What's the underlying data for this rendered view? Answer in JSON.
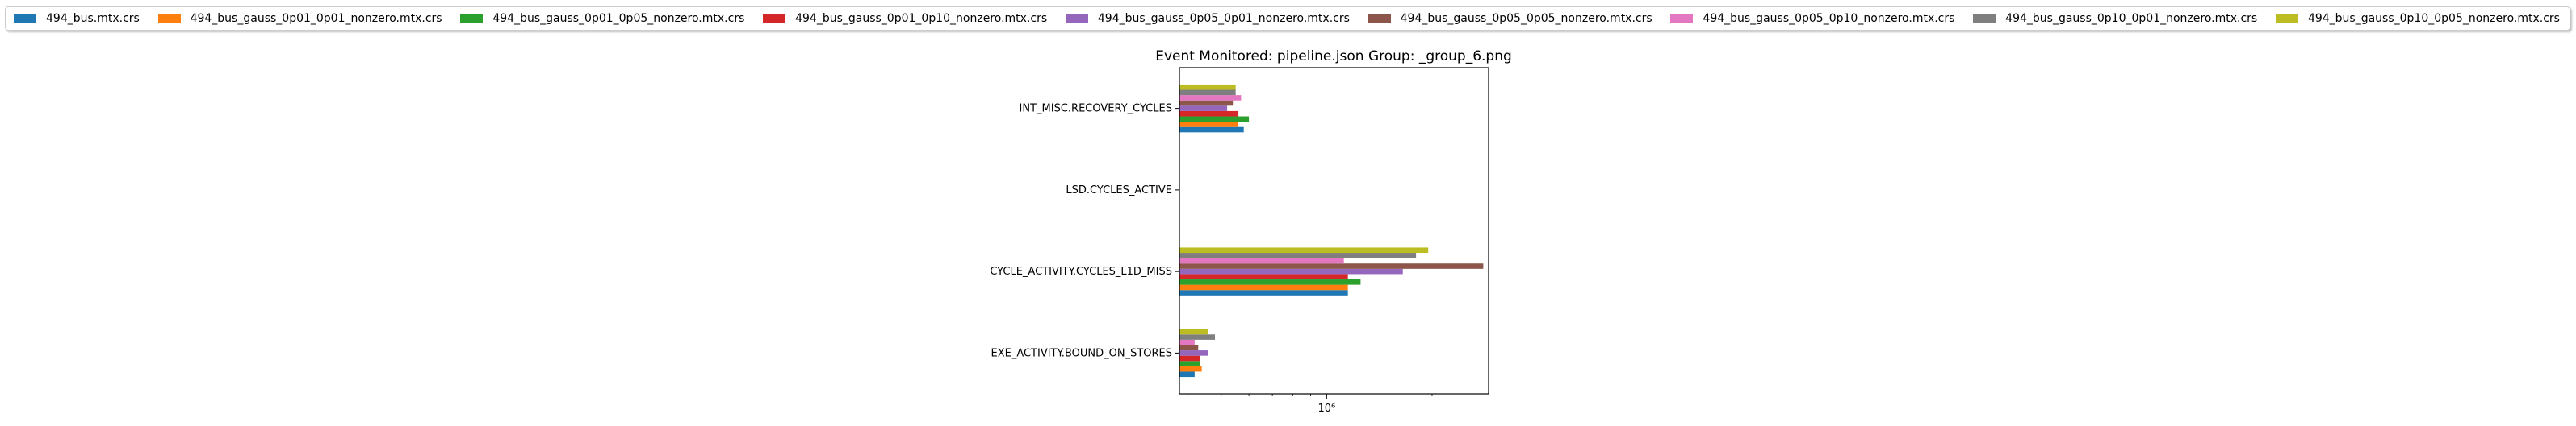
{
  "chart_data": {
    "type": "bar",
    "orientation": "horizontal",
    "title": "Event Monitored: pipeline.json Group: _group_6.png",
    "xlabel": "",
    "ylabel": "",
    "x_scale": "log",
    "xlim": [
      380000,
      2900000
    ],
    "x_tick_label": "10⁶",
    "x_tick_value": 1000000,
    "grid": false,
    "legend_position": "top",
    "categories": [
      "EXE_ACTIVITY.BOUND_ON_STORES",
      "CYCLE_ACTIVITY.CYCLES_L1D_MISS",
      "LSD.CYCLES_ACTIVE",
      "INT_MISC.RECOVERY_CYCLES"
    ],
    "series": [
      {
        "name": "494_bus.mtx.crs",
        "color": "#1f77b4",
        "values": [
          420000,
          1150000,
          null,
          580000
        ]
      },
      {
        "name": "494_bus_gauss_0p01_0p01_nonzero.mtx.crs",
        "color": "#ff7f0e",
        "values": [
          440000,
          1150000,
          null,
          560000
        ]
      },
      {
        "name": "494_bus_gauss_0p01_0p05_nonzero.mtx.crs",
        "color": "#2ca02c",
        "values": [
          435000,
          1250000,
          null,
          600000
        ]
      },
      {
        "name": "494_bus_gauss_0p01_0p10_nonzero.mtx.crs",
        "color": "#d62728",
        "values": [
          435000,
          1150000,
          null,
          560000
        ]
      },
      {
        "name": "494_bus_gauss_0p05_0p01_nonzero.mtx.crs",
        "color": "#9467bd",
        "values": [
          460000,
          1650000,
          null,
          520000
        ]
      },
      {
        "name": "494_bus_gauss_0p05_0p05_nonzero.mtx.crs",
        "color": "#8c564b",
        "values": [
          430000,
          2800000,
          null,
          540000
        ]
      },
      {
        "name": "494_bus_gauss_0p05_0p10_nonzero.mtx.crs",
        "color": "#e377c2",
        "values": [
          420000,
          1120000,
          null,
          570000
        ]
      },
      {
        "name": "494_bus_gauss_0p10_0p01_nonzero.mtx.crs",
        "color": "#7f7f7f",
        "values": [
          480000,
          1800000,
          null,
          550000
        ]
      },
      {
        "name": "494_bus_gauss_0p10_0p05_nonzero.mtx.crs",
        "color": "#bcbd22",
        "values": [
          460000,
          1950000,
          null,
          550000
        ]
      }
    ]
  }
}
